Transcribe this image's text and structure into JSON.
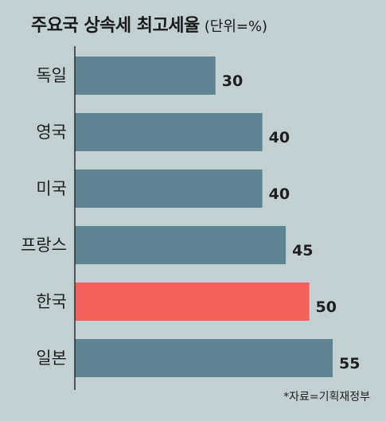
{
  "title": "주요국 상속세 최고세율",
  "unit": "(단위=%)",
  "source": "*자료=기획재정부",
  "colors": {
    "background": "#c3d0d2",
    "bar": "#5f8491",
    "highlight": "#f1605a",
    "axis": "#2a2a2a"
  },
  "chart_data": {
    "type": "bar",
    "orientation": "horizontal",
    "title": "주요국 상속세 최고세율",
    "unit": "(단위=%)",
    "categories": [
      "독일",
      "영국",
      "미국",
      "프랑스",
      "한국",
      "일본"
    ],
    "values": [
      30,
      40,
      40,
      45,
      50,
      55
    ],
    "highlight_category": "한국",
    "xlim": [
      0,
      55
    ],
    "grid": false,
    "legend": "none"
  }
}
